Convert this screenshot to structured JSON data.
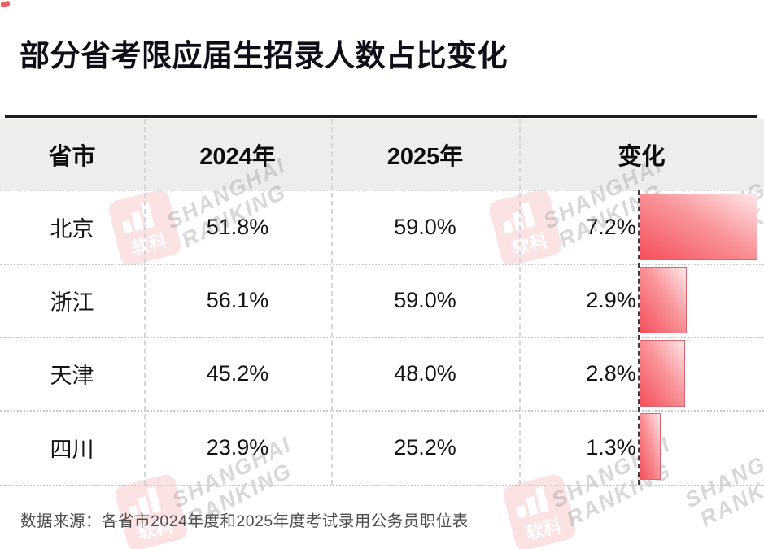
{
  "page": {
    "title": "部分省考限应届生招录人数占比变化",
    "source_note": "数据来源：各省市2024年度和2025年度考试录用公务员职位表"
  },
  "table": {
    "headers": {
      "province": "省市",
      "y2024": "2024年",
      "y2025": "2025年",
      "change": "变化"
    },
    "rows": [
      {
        "province": "北京",
        "y2024": "51.8%",
        "y2025": "59.0%",
        "change": "7.2%"
      },
      {
        "province": "浙江",
        "y2024": "56.1%",
        "y2025": "59.0%",
        "change": "2.9%"
      },
      {
        "province": "天津",
        "y2024": "45.2%",
        "y2025": "48.0%",
        "change": "2.8%"
      },
      {
        "province": "四川",
        "y2024": "23.9%",
        "y2025": "25.2%",
        "change": "1.3%"
      }
    ]
  },
  "watermark": {
    "brand_line1": "SHANGHAI",
    "brand_line2": "RANKING",
    "logo_label": "软科"
  },
  "colors": {
    "bar_gradient_start": "#f44e5a",
    "bar_gradient_end": "#ffe7e8",
    "bar_border": "#d96570",
    "accent_red": "#e8434b",
    "header_band": "#edeeec",
    "title_text": "#0e0e18",
    "source_text": "#4d4d4d"
  },
  "chart_data": {
    "type": "bar",
    "orientation": "horizontal",
    "title": "部分省考限应届生招录人数占比变化",
    "categories": [
      "北京",
      "浙江",
      "天津",
      "四川"
    ],
    "series": [
      {
        "name": "2024年",
        "values": [
          51.8,
          56.1,
          45.2,
          23.9
        ]
      },
      {
        "name": "2025年",
        "values": [
          59.0,
          59.0,
          48.0,
          25.2
        ]
      },
      {
        "name": "变化",
        "values": [
          7.2,
          2.9,
          2.8,
          1.3
        ]
      }
    ],
    "bar_plotted_series": "变化",
    "unit": "%",
    "xlim": [
      0,
      7.2
    ],
    "grid": false,
    "legend": false,
    "source": "数据来源：各省市2024年度和2025年度考试录用公务员职位表"
  }
}
